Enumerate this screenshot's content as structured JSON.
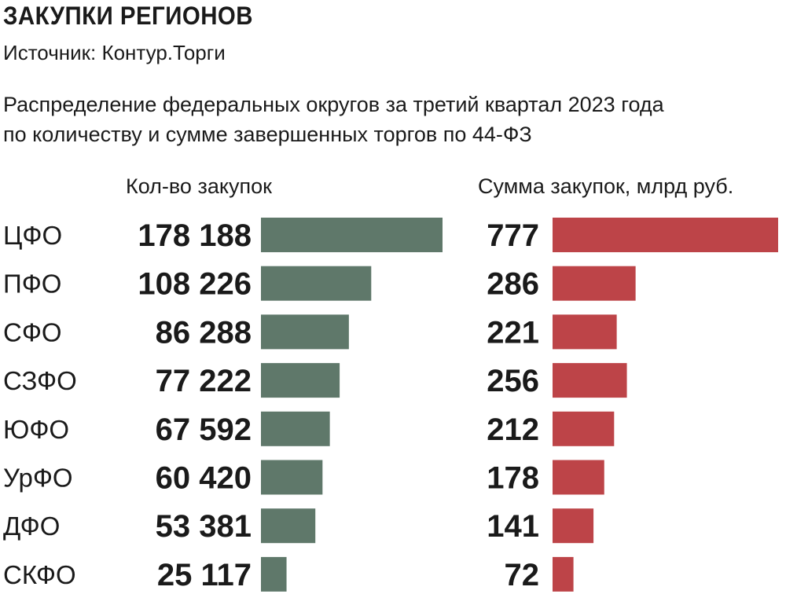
{
  "header": {
    "title": "ЗАКУПКИ РЕГИОНОВ",
    "source": "Источник: Контур.Торги",
    "subtitle_line1": "Распределение федеральных округов за третий квартал 2023 года",
    "subtitle_line2": "по количеству и сумме завершенных торгов по 44-ФЗ"
  },
  "colors": {
    "count_bar": "#5f786a",
    "sum_bar": "#bd4448"
  },
  "chart_data": {
    "type": "bar",
    "orientation": "horizontal",
    "title": "ЗАКУПКИ РЕГИОНОВ",
    "categories": [
      "ЦФО",
      "ПФО",
      "СФО",
      "СЗФО",
      "ЮФО",
      "УрФО",
      "ДФО",
      "СКФО"
    ],
    "series": [
      {
        "name": "Кол-во закупок",
        "values": [
          178188,
          108226,
          86288,
          77222,
          67592,
          60420,
          53381,
          25117
        ],
        "labels": [
          "178 188",
          "108 226",
          "86 288",
          "77 222",
          "67 592",
          "60 420",
          "53 381",
          "25 117"
        ]
      },
      {
        "name": "Сумма закупок, млрд руб.",
        "values": [
          777,
          286,
          221,
          256,
          212,
          178,
          141,
          72
        ],
        "labels": [
          "777",
          "286",
          "221",
          "256",
          "212",
          "178",
          "141",
          "72"
        ]
      }
    ],
    "grid": false,
    "legend": "none"
  }
}
